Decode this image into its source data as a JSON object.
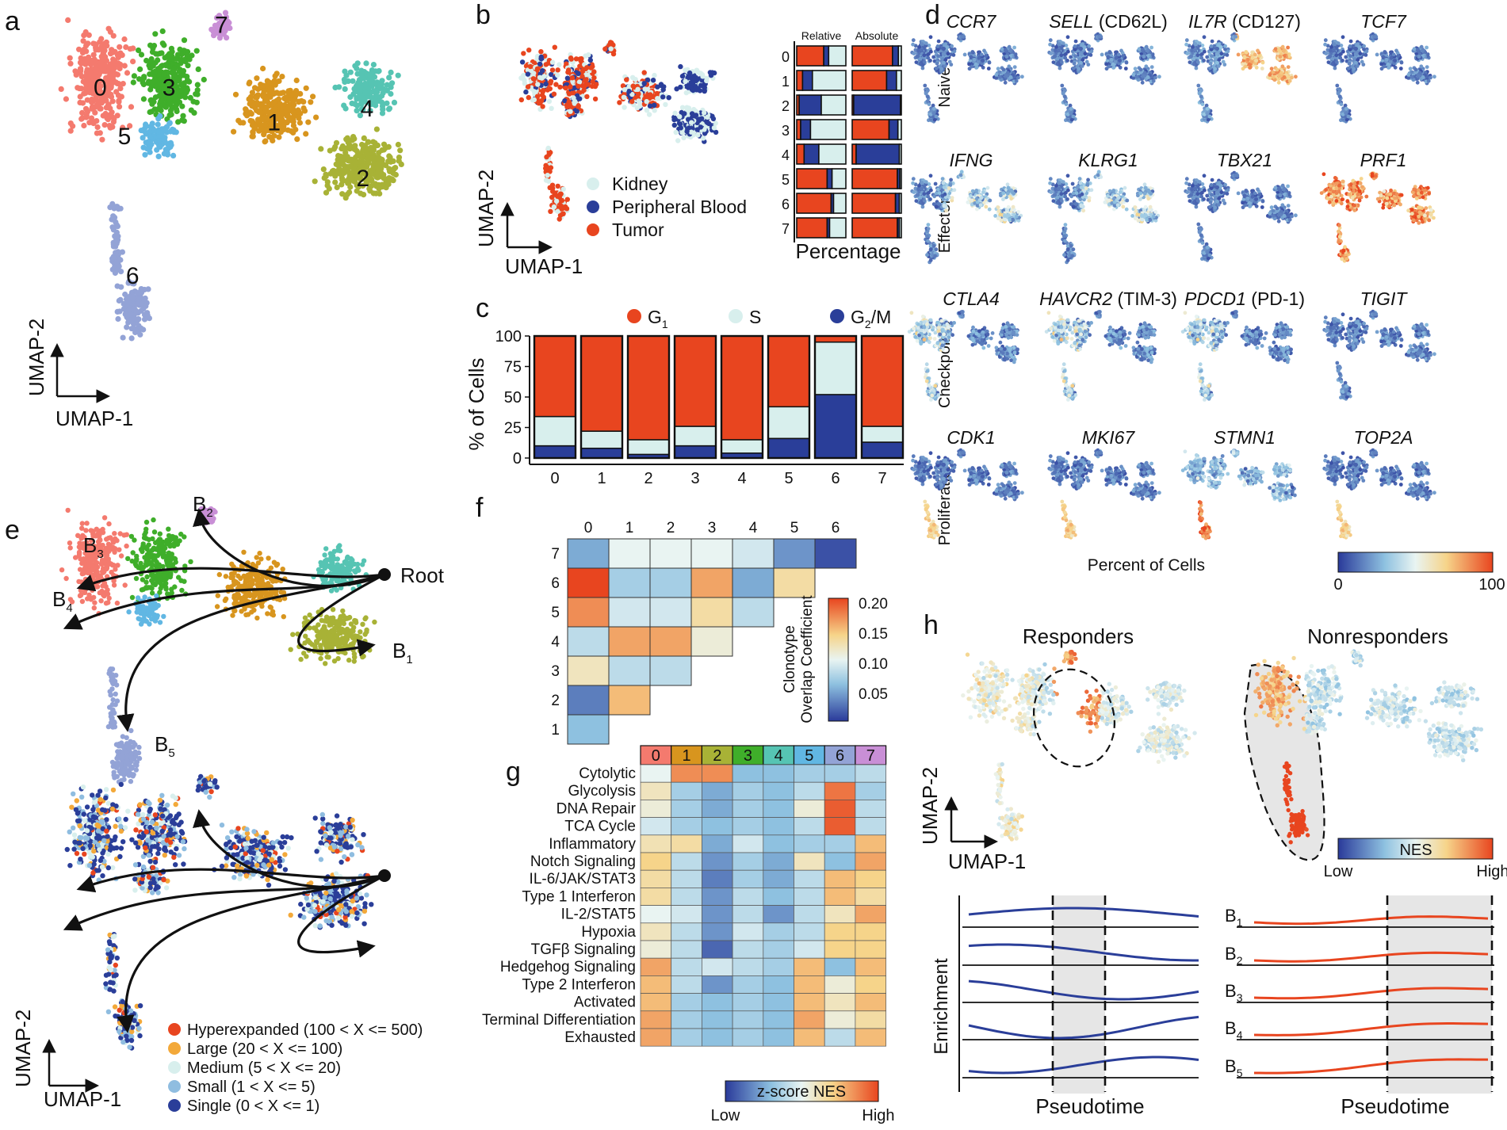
{
  "panels": {
    "a": {
      "label": "a",
      "axis_x": "UMAP-1",
      "axis_y": "UMAP-2",
      "cluster_labels": [
        "0",
        "1",
        "2",
        "3",
        "4",
        "5",
        "6",
        "7"
      ],
      "cluster_colors": [
        "#f47a6e",
        "#d8951e",
        "#a8b236",
        "#3fae2a",
        "#56c4b3",
        "#61b7e3",
        "#93a3d6",
        "#c98fd6"
      ]
    },
    "b": {
      "label": "b",
      "axis_x": "UMAP-1",
      "axis_y": "UMAP-2",
      "legend": [
        {
          "name": "Kidney",
          "color": "#d8efed"
        },
        {
          "name": "Peripheral Blood",
          "color": "#2a3e99"
        },
        {
          "name": "Tumor",
          "color": "#e8451f"
        }
      ],
      "bar_titles": [
        "Relative",
        "Absolute"
      ],
      "bar_xlabel": "Percentage",
      "bar_rows": [
        "0",
        "1",
        "2",
        "3",
        "4",
        "5",
        "6",
        "7"
      ]
    },
    "c": {
      "label": "c",
      "legend": [
        {
          "name": "G",
          "sub": "1",
          "color": "#e8451f"
        },
        {
          "name": "S",
          "sub": "",
          "color": "#d8efed"
        },
        {
          "name": "G",
          "sub": "2",
          "suffix": "/M",
          "color": "#2a3e99"
        }
      ],
      "ylabel": "% of Cells",
      "yticks": [
        "0",
        "25",
        "50",
        "75",
        "100"
      ]
    },
    "d": {
      "label": "d",
      "rows": [
        {
          "name": "Naive",
          "genes": [
            {
              "gene": "CCR7",
              "alias": ""
            },
            {
              "gene": "SELL",
              "alias": "(CD62L)"
            },
            {
              "gene": "IL7R",
              "alias": "(CD127)"
            },
            {
              "gene": "TCF7",
              "alias": ""
            }
          ]
        },
        {
          "name": "Effector",
          "genes": [
            {
              "gene": "IFNG",
              "alias": ""
            },
            {
              "gene": "KLRG1",
              "alias": ""
            },
            {
              "gene": "TBX21",
              "alias": ""
            },
            {
              "gene": "PRF1",
              "alias": ""
            }
          ]
        },
        {
          "name": "Checkpoints",
          "genes": [
            {
              "gene": "CTLA4",
              "alias": ""
            },
            {
              "gene": "HAVCR2",
              "alias": "(TIM-3)"
            },
            {
              "gene": "PDCD1",
              "alias": "(PD-1)"
            },
            {
              "gene": "TIGIT",
              "alias": ""
            }
          ]
        },
        {
          "name": "Proliferation",
          "genes": [
            {
              "gene": "CDK1",
              "alias": ""
            },
            {
              "gene": "MKI67",
              "alias": ""
            },
            {
              "gene": "STMN1",
              "alias": ""
            },
            {
              "gene": "TOP2A",
              "alias": ""
            }
          ]
        }
      ],
      "colorbar_label": "Percent of Cells",
      "colorbar_min": "0",
      "colorbar_max": "100"
    },
    "e": {
      "label": "e",
      "root_label": "Root",
      "branches": [
        {
          "name": "B",
          "sub": "1"
        },
        {
          "name": "B",
          "sub": "2"
        },
        {
          "name": "B",
          "sub": "3"
        },
        {
          "name": "B",
          "sub": "4"
        },
        {
          "name": "B",
          "sub": "5"
        }
      ],
      "axis_x": "UMAP-1",
      "axis_y": "UMAP-2",
      "legend": [
        {
          "name": "Hyperexpanded (100 < X <= 500)",
          "color": "#e8451f"
        },
        {
          "name": "Large (20 < X <= 100)",
          "color": "#f3a93a"
        },
        {
          "name": "Medium (5 < X <= 20)",
          "color": "#d8efed"
        },
        {
          "name": "Small (1 < X <= 5)",
          "color": "#8fbde0"
        },
        {
          "name": "Single (0 < X <= 1)",
          "color": "#2a3e99"
        }
      ]
    },
    "f": {
      "label": "f",
      "col_labels": [
        "0",
        "1",
        "2",
        "3",
        "4",
        "5",
        "6"
      ],
      "row_labels": [
        "7",
        "6",
        "5",
        "4",
        "3",
        "2",
        "1"
      ],
      "colorbar_title": [
        "Clonotype",
        "Overlap Coefficient"
      ],
      "colorbar_ticks": [
        "0.20",
        "0.15",
        "0.10",
        "0.05"
      ]
    },
    "g": {
      "label": "g",
      "colorbar_title": "z-score NES",
      "colorbar_low": "Low",
      "colorbar_high": "High"
    },
    "h": {
      "label": "h",
      "titles": [
        "Responders",
        "Nonresponders"
      ],
      "axis_x": "UMAP-1",
      "axis_y": "UMAP-2",
      "colorbar_title": "NES",
      "colorbar_low": "Low",
      "colorbar_high": "High",
      "enrichment_ylabel": "Enrichment",
      "pseudotime_label": "Pseudotime",
      "branches": [
        {
          "name": "B",
          "sub": "1"
        },
        {
          "name": "B",
          "sub": "2"
        },
        {
          "name": "B",
          "sub": "3"
        },
        {
          "name": "B",
          "sub": "4"
        },
        {
          "name": "B",
          "sub": "5"
        }
      ]
    }
  },
  "chart_data": [
    {
      "panel": "b",
      "type": "bar",
      "orientation": "horizontal-stacked",
      "categories": [
        "0",
        "1",
        "2",
        "3",
        "4",
        "5",
        "6",
        "7"
      ],
      "series_order": [
        "Tumor",
        "Peripheral Blood",
        "Kidney"
      ],
      "relative": [
        [
          55,
          10,
          35
        ],
        [
          12,
          20,
          68
        ],
        [
          5,
          45,
          50
        ],
        [
          8,
          20,
          72
        ],
        [
          15,
          30,
          55
        ],
        [
          62,
          10,
          28
        ],
        [
          70,
          5,
          25
        ],
        [
          62,
          5,
          33
        ]
      ],
      "absolute": [
        [
          82,
          12,
          6
        ],
        [
          70,
          20,
          10
        ],
        [
          3,
          95,
          2
        ],
        [
          75,
          18,
          7
        ],
        [
          8,
          88,
          4
        ],
        [
          92,
          5,
          3
        ],
        [
          88,
          8,
          4
        ],
        [
          92,
          4,
          4
        ]
      ],
      "xlabel": "Percentage"
    },
    {
      "panel": "c",
      "type": "bar",
      "orientation": "vertical-stacked",
      "categories": [
        "0",
        "1",
        "2",
        "3",
        "4",
        "5",
        "6",
        "7"
      ],
      "series": [
        {
          "name": "G2/M",
          "values": [
            10,
            8,
            3,
            10,
            4,
            16,
            52,
            13
          ]
        },
        {
          "name": "S",
          "values": [
            24,
            14,
            12,
            16,
            11,
            26,
            43,
            13
          ]
        },
        {
          "name": "G1",
          "values": [
            66,
            78,
            85,
            74,
            85,
            58,
            5,
            74
          ]
        }
      ],
      "ylabel": "% of Cells",
      "ylim": [
        0,
        100
      ]
    },
    {
      "panel": "f",
      "type": "heatmap",
      "col_labels": [
        "0",
        "1",
        "2",
        "3",
        "4",
        "5",
        "6"
      ],
      "rows": [
        {
          "row": "7",
          "values": [
            0.05,
            0.1,
            0.1,
            0.1,
            0.09,
            0.04,
            0.01
          ]
        },
        {
          "row": "6",
          "values": [
            0.2,
            0.07,
            0.07,
            0.16,
            0.05,
            0.13,
            null
          ]
        },
        {
          "row": "5",
          "values": [
            0.17,
            0.09,
            0.09,
            0.13,
            0.08,
            null,
            null
          ]
        },
        {
          "row": "4",
          "values": [
            0.08,
            0.16,
            0.16,
            0.11,
            null,
            null,
            null
          ]
        },
        {
          "row": "3",
          "values": [
            0.12,
            0.08,
            0.08,
            null,
            null,
            null,
            null
          ]
        },
        {
          "row": "2",
          "values": [
            0.03,
            0.15,
            null,
            null,
            null,
            null,
            null
          ]
        },
        {
          "row": "1",
          "values": [
            0.06,
            null,
            null,
            null,
            null,
            null,
            null
          ]
        }
      ],
      "scale": [
        0.0,
        0.2
      ]
    },
    {
      "panel": "g",
      "type": "heatmap",
      "columns": [
        "0",
        "1",
        "2",
        "3",
        "4",
        "5",
        "6",
        "7"
      ],
      "rows": [
        {
          "name": "Cytolytic",
          "values": [
            0.5,
            0.85,
            0.85,
            0.3,
            0.3,
            0.35,
            0.35,
            0.4
          ]
        },
        {
          "name": "Glycolysis",
          "values": [
            0.6,
            0.35,
            0.25,
            0.35,
            0.3,
            0.4,
            0.9,
            0.35
          ]
        },
        {
          "name": "DNA Repair",
          "values": [
            0.55,
            0.35,
            0.25,
            0.35,
            0.3,
            0.55,
            0.95,
            0.4
          ]
        },
        {
          "name": "TCA Cycle",
          "values": [
            0.45,
            0.35,
            0.3,
            0.35,
            0.3,
            0.4,
            0.95,
            0.4
          ]
        },
        {
          "name": "Inflammatory",
          "values": [
            0.62,
            0.65,
            0.25,
            0.45,
            0.3,
            0.35,
            0.35,
            0.75
          ]
        },
        {
          "name": "Notch Signaling",
          "values": [
            0.7,
            0.4,
            0.2,
            0.35,
            0.25,
            0.6,
            0.3,
            0.8
          ]
        },
        {
          "name": "IL-6/JAK/STAT3",
          "values": [
            0.65,
            0.4,
            0.15,
            0.35,
            0.25,
            0.4,
            0.75,
            0.7
          ]
        },
        {
          "name": "Type 1 Interferon",
          "values": [
            0.65,
            0.4,
            0.2,
            0.4,
            0.3,
            0.4,
            0.75,
            0.65
          ]
        },
        {
          "name": "IL-2/STAT5",
          "values": [
            0.5,
            0.45,
            0.2,
            0.4,
            0.2,
            0.4,
            0.6,
            0.8
          ]
        },
        {
          "name": "Hypoxia",
          "values": [
            0.6,
            0.4,
            0.2,
            0.45,
            0.35,
            0.4,
            0.7,
            0.7
          ]
        },
        {
          "name": "TGFβ Signaling",
          "values": [
            0.55,
            0.4,
            0.1,
            0.4,
            0.35,
            0.45,
            0.7,
            0.7
          ]
        },
        {
          "name": "Hedgehog Signaling",
          "values": [
            0.8,
            0.4,
            0.45,
            0.4,
            0.35,
            0.75,
            0.3,
            0.75
          ]
        },
        {
          "name": "Type 2 Interferon",
          "values": [
            0.75,
            0.4,
            0.2,
            0.35,
            0.3,
            0.75,
            0.55,
            0.7
          ]
        },
        {
          "name": "Activated",
          "values": [
            0.75,
            0.35,
            0.3,
            0.35,
            0.3,
            0.75,
            0.6,
            0.75
          ]
        },
        {
          "name": "Terminal Differentiation",
          "values": [
            0.8,
            0.35,
            0.3,
            0.35,
            0.3,
            0.8,
            0.55,
            0.65
          ]
        },
        {
          "name": "Exhausted",
          "values": [
            0.8,
            0.35,
            0.3,
            0.35,
            0.3,
            0.75,
            0.4,
            0.75
          ]
        }
      ],
      "scale": [
        0,
        1
      ]
    }
  ]
}
